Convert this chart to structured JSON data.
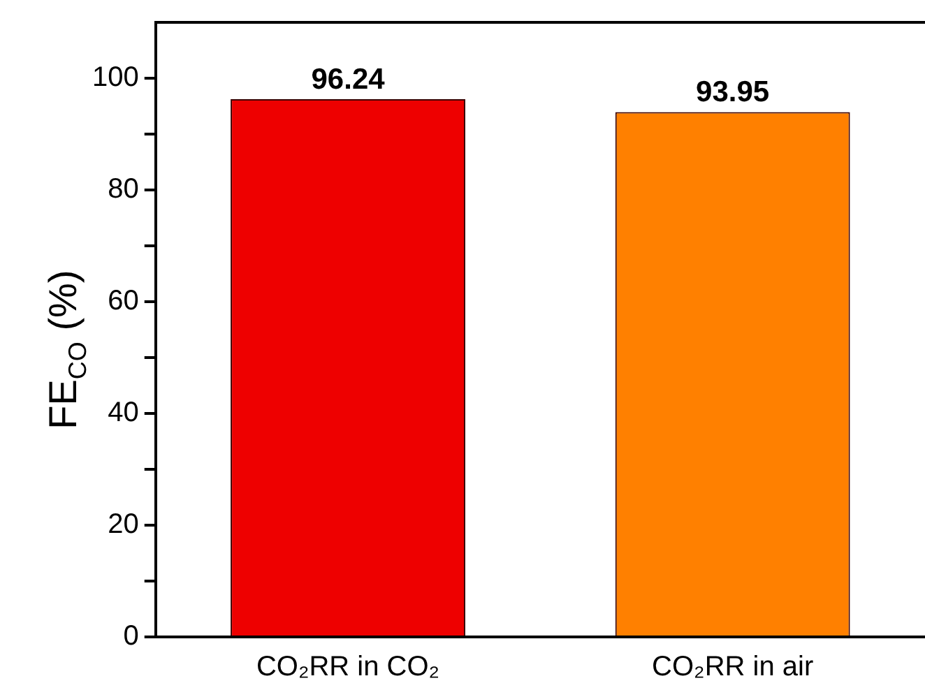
{
  "chart_data": {
    "type": "bar",
    "ylabel": "FE$_{CO}$ (%)",
    "categories": [
      "CO₂RR in CO₂",
      "CO₂RR in air"
    ],
    "values": [
      96.24,
      93.95
    ],
    "colors": [
      "#ee0000",
      "#ff8000"
    ],
    "ylim": [
      0,
      110
    ],
    "yticks": [
      0,
      {
        "value": 10,
        "label": null
      },
      20,
      {
        "value": 30,
        "label": null
      },
      40,
      {
        "value": 50,
        "label": null
      },
      60,
      {
        "value": 70,
        "label": null
      },
      80,
      {
        "value": 90,
        "label": null
      },
      100
    ],
    "data_labels": true,
    "grid": false,
    "legend": false
  }
}
